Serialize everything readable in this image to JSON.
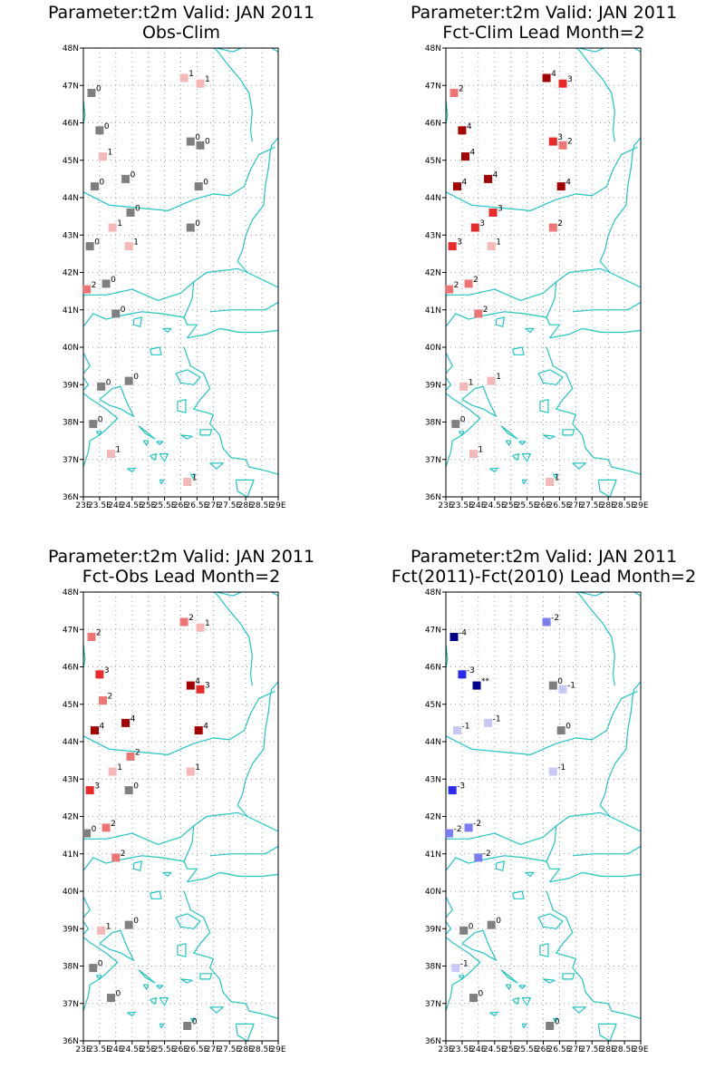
{
  "colors": {
    "coast": "#22c4c4",
    "frame": "#000000",
    "grid": "#9a9a9a",
    "zero": "#7f7f7f",
    "pos1": "#f5b7b7",
    "pos2": "#ef7575",
    "pos3": "#e82a2a",
    "pos4": "#a50000",
    "neg1": "#c8c8f6",
    "neg2": "#7b7bf2",
    "neg3": "#2a2af0",
    "neg4": "#00008c",
    "neg5": "#00008c"
  },
  "axes": {
    "lat_ticks": [
      "36N",
      "37N",
      "38N",
      "39N",
      "40N",
      "41N",
      "42N",
      "43N",
      "44N",
      "45N",
      "46N",
      "47N",
      "48N"
    ],
    "lon_ticks": [
      "23E",
      "23.5E",
      "24E",
      "24.5E",
      "25E",
      "25.5E",
      "26E",
      "26.5E",
      "27E",
      "27.5E",
      "28E",
      "28.5E",
      "29E"
    ],
    "lon_range": [
      23,
      29
    ],
    "lat_range": [
      36,
      48
    ]
  },
  "panels": [
    {
      "title_line1": "Parameter:t2m Valid: JAN 2011",
      "title_line2": "Obs-Clim",
      "stations": [
        {
          "lon": 23.25,
          "lat": 46.8,
          "v": 0,
          "label": "0"
        },
        {
          "lon": 23.5,
          "lat": 45.8,
          "v": 0,
          "label": "0"
        },
        {
          "lon": 23.6,
          "lat": 45.1,
          "v": 1,
          "label": "1"
        },
        {
          "lon": 23.35,
          "lat": 44.3,
          "v": 0,
          "label": "0"
        },
        {
          "lon": 24.3,
          "lat": 44.5,
          "v": 0,
          "label": "0"
        },
        {
          "lon": 24.45,
          "lat": 43.6,
          "v": 0,
          "label": "0"
        },
        {
          "lon": 23.9,
          "lat": 43.2,
          "v": 1,
          "label": "1"
        },
        {
          "lon": 23.2,
          "lat": 42.7,
          "v": 0,
          "label": "0"
        },
        {
          "lon": 24.4,
          "lat": 42.7,
          "v": 1,
          "label": "1"
        },
        {
          "lon": 23.7,
          "lat": 41.7,
          "v": 0,
          "label": "0"
        },
        {
          "lon": 23.1,
          "lat": 41.55,
          "v": 2,
          "label": "2"
        },
        {
          "lon": 24.0,
          "lat": 40.9,
          "v": 0,
          "label": "0"
        },
        {
          "lon": 26.1,
          "lat": 47.2,
          "v": 1,
          "label": "1"
        },
        {
          "lon": 26.6,
          "lat": 47.05,
          "v": 1,
          "label": "1"
        },
        {
          "lon": 26.3,
          "lat": 45.5,
          "v": 0,
          "label": "0"
        },
        {
          "lon": 26.6,
          "lat": 45.4,
          "v": 0,
          "label": "0"
        },
        {
          "lon": 26.55,
          "lat": 44.3,
          "v": 0,
          "label": "0"
        },
        {
          "lon": 26.3,
          "lat": 43.2,
          "v": 0,
          "label": "0"
        },
        {
          "lon": 23.55,
          "lat": 38.95,
          "v": 0,
          "label": "0"
        },
        {
          "lon": 23.3,
          "lat": 37.95,
          "v": 0,
          "label": "0"
        },
        {
          "lon": 24.4,
          "lat": 39.1,
          "v": 0,
          "label": "0"
        },
        {
          "lon": 23.85,
          "lat": 37.15,
          "v": 1,
          "label": "1"
        },
        {
          "lon": 26.2,
          "lat": 36.4,
          "v": 1,
          "label": "1"
        }
      ]
    },
    {
      "title_line1": "Parameter:t2m Valid: JAN 2011",
      "title_line2": "Fct-Clim Lead Month=2",
      "stations": [
        {
          "lon": 23.25,
          "lat": 46.8,
          "v": 2,
          "label": "2"
        },
        {
          "lon": 23.5,
          "lat": 45.8,
          "v": 4,
          "label": "4"
        },
        {
          "lon": 23.6,
          "lat": 45.1,
          "v": 4,
          "label": "4"
        },
        {
          "lon": 23.35,
          "lat": 44.3,
          "v": 4,
          "label": "4"
        },
        {
          "lon": 24.3,
          "lat": 44.5,
          "v": 4,
          "label": "4"
        },
        {
          "lon": 24.45,
          "lat": 43.6,
          "v": 3,
          "label": "3"
        },
        {
          "lon": 23.9,
          "lat": 43.2,
          "v": 3,
          "label": "3"
        },
        {
          "lon": 23.2,
          "lat": 42.7,
          "v": 3,
          "label": "3"
        },
        {
          "lon": 24.4,
          "lat": 42.7,
          "v": 1,
          "label": "1"
        },
        {
          "lon": 23.7,
          "lat": 41.7,
          "v": 2,
          "label": "2"
        },
        {
          "lon": 23.1,
          "lat": 41.55,
          "v": 2,
          "label": "2"
        },
        {
          "lon": 24.0,
          "lat": 40.9,
          "v": 2,
          "label": "2"
        },
        {
          "lon": 26.1,
          "lat": 47.2,
          "v": 4,
          "label": "4"
        },
        {
          "lon": 26.6,
          "lat": 47.05,
          "v": 3,
          "label": "3"
        },
        {
          "lon": 26.3,
          "lat": 45.5,
          "v": 3,
          "label": "3"
        },
        {
          "lon": 26.6,
          "lat": 45.4,
          "v": 2,
          "label": "2"
        },
        {
          "lon": 26.55,
          "lat": 44.3,
          "v": 4,
          "label": "4"
        },
        {
          "lon": 26.3,
          "lat": 43.2,
          "v": 2,
          "label": "2"
        },
        {
          "lon": 23.55,
          "lat": 38.95,
          "v": 1,
          "label": "1"
        },
        {
          "lon": 23.3,
          "lat": 37.95,
          "v": 0,
          "label": "0"
        },
        {
          "lon": 24.4,
          "lat": 39.1,
          "v": 1,
          "label": "1"
        },
        {
          "lon": 23.85,
          "lat": 37.15,
          "v": 1,
          "label": "1"
        },
        {
          "lon": 26.2,
          "lat": 36.4,
          "v": 1,
          "label": "1"
        }
      ]
    },
    {
      "title_line1": "Parameter:t2m Valid: JAN 2011",
      "title_line2": "Fct-Obs Lead Month=2",
      "stations": [
        {
          "lon": 23.25,
          "lat": 46.8,
          "v": 2,
          "label": "2"
        },
        {
          "lon": 23.5,
          "lat": 45.8,
          "v": 3,
          "label": "3"
        },
        {
          "lon": 23.6,
          "lat": 45.1,
          "v": 2,
          "label": "2"
        },
        {
          "lon": 23.35,
          "lat": 44.3,
          "v": 4,
          "label": "4"
        },
        {
          "lon": 24.3,
          "lat": 44.5,
          "v": 4,
          "label": "4"
        },
        {
          "lon": 24.45,
          "lat": 43.6,
          "v": 2,
          "label": "2"
        },
        {
          "lon": 23.9,
          "lat": 43.2,
          "v": 1,
          "label": "1"
        },
        {
          "lon": 23.2,
          "lat": 42.7,
          "v": 3,
          "label": "3"
        },
        {
          "lon": 24.4,
          "lat": 42.7,
          "v": 0,
          "label": "0"
        },
        {
          "lon": 23.7,
          "lat": 41.7,
          "v": 2,
          "label": "2"
        },
        {
          "lon": 23.1,
          "lat": 41.55,
          "v": 0,
          "label": "0"
        },
        {
          "lon": 24.0,
          "lat": 40.9,
          "v": 2,
          "label": "2"
        },
        {
          "lon": 26.1,
          "lat": 47.2,
          "v": 2,
          "label": "2"
        },
        {
          "lon": 26.6,
          "lat": 47.05,
          "v": 1,
          "label": "1"
        },
        {
          "lon": 26.3,
          "lat": 45.5,
          "v": 4,
          "label": "4"
        },
        {
          "lon": 26.6,
          "lat": 45.4,
          "v": 3,
          "label": "3"
        },
        {
          "lon": 26.55,
          "lat": 44.3,
          "v": 4,
          "label": "4"
        },
        {
          "lon": 26.3,
          "lat": 43.2,
          "v": 1,
          "label": "1"
        },
        {
          "lon": 23.55,
          "lat": 38.95,
          "v": 1,
          "label": "1"
        },
        {
          "lon": 23.3,
          "lat": 37.95,
          "v": 0,
          "label": "0"
        },
        {
          "lon": 24.4,
          "lat": 39.1,
          "v": 0,
          "label": "0"
        },
        {
          "lon": 23.85,
          "lat": 37.15,
          "v": 0,
          "label": "0"
        },
        {
          "lon": 26.2,
          "lat": 36.4,
          "v": 0,
          "label": "0"
        }
      ]
    },
    {
      "title_line1": "Parameter:t2m Valid: JAN 2011",
      "title_line2": "Fct(2011)-Fct(2010) Lead Month=2",
      "stations": [
        {
          "lon": 23.25,
          "lat": 46.8,
          "v": -4,
          "label": "-4"
        },
        {
          "lon": 23.5,
          "lat": 45.8,
          "v": -3,
          "label": "-3"
        },
        {
          "lon": 23.95,
          "lat": 45.5,
          "v": -5,
          "label": "**"
        },
        {
          "lon": 23.35,
          "lat": 44.3,
          "v": -1,
          "label": "-1"
        },
        {
          "lon": 24.3,
          "lat": 44.5,
          "v": -1,
          "label": "-1"
        },
        {
          "lon": 23.2,
          "lat": 42.7,
          "v": -3,
          "label": "-3"
        },
        {
          "lon": 23.7,
          "lat": 41.7,
          "v": -2,
          "label": "-2"
        },
        {
          "lon": 23.1,
          "lat": 41.55,
          "v": -2,
          "label": "-2"
        },
        {
          "lon": 24.0,
          "lat": 40.9,
          "v": -2,
          "label": "-2"
        },
        {
          "lon": 26.1,
          "lat": 47.2,
          "v": -2,
          "label": "-2"
        },
        {
          "lon": 26.3,
          "lat": 45.5,
          "v": 0,
          "label": "0"
        },
        {
          "lon": 26.6,
          "lat": 45.4,
          "v": -1,
          "label": "-1"
        },
        {
          "lon": 26.55,
          "lat": 44.3,
          "v": 0,
          "label": "0"
        },
        {
          "lon": 26.3,
          "lat": 43.2,
          "v": -1,
          "label": "-1"
        },
        {
          "lon": 23.55,
          "lat": 38.95,
          "v": 0,
          "label": "0"
        },
        {
          "lon": 23.3,
          "lat": 37.95,
          "v": -1,
          "label": "-1"
        },
        {
          "lon": 24.4,
          "lat": 39.1,
          "v": 0,
          "label": "0"
        },
        {
          "lon": 23.85,
          "lat": 37.15,
          "v": 0,
          "label": "0"
        },
        {
          "lon": 26.2,
          "lat": 36.4,
          "v": 0,
          "label": "0"
        }
      ]
    }
  ]
}
